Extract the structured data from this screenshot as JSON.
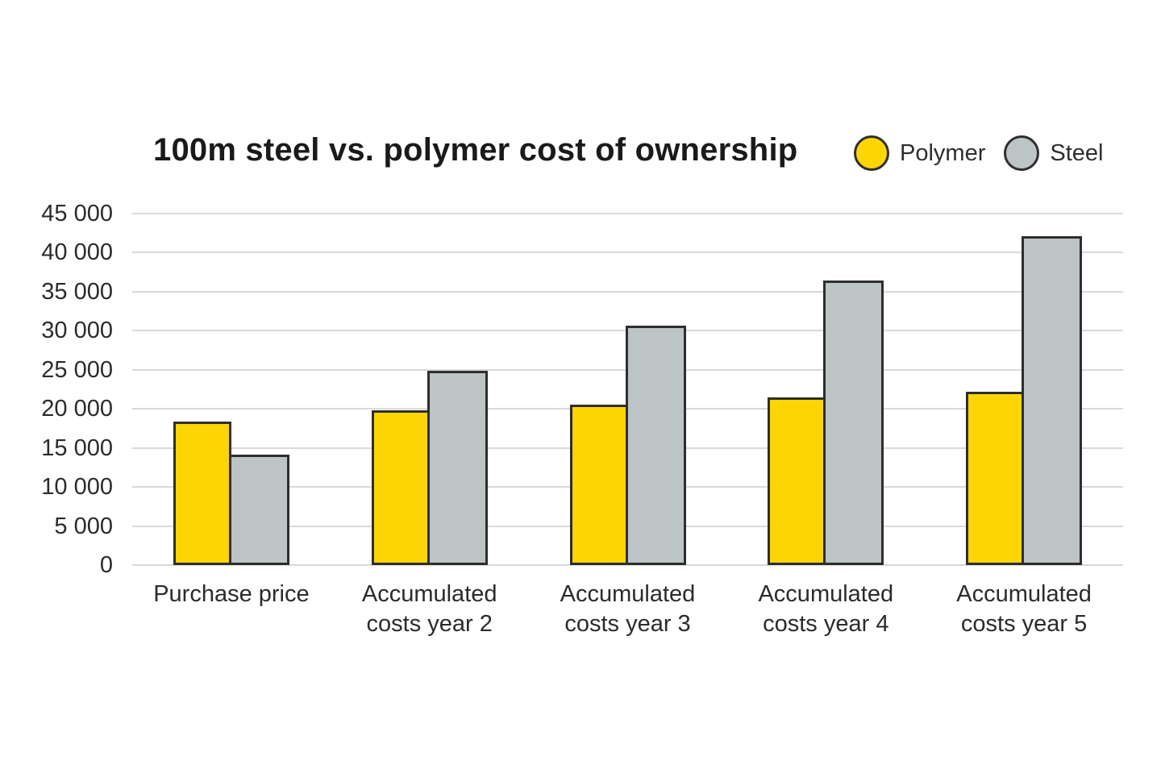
{
  "page": {
    "background": "#ffffff"
  },
  "chart_data": {
    "type": "bar",
    "title": "100m steel vs. polymer cost of ownership",
    "categories": [
      "Purchase price",
      "Accumulated costs year 2",
      "Accumulated costs year 3",
      "Accumulated costs year 4",
      "Accumulated costs year 5"
    ],
    "category_lines": [
      [
        "Purchase price"
      ],
      [
        "Accumulated",
        "costs year 2"
      ],
      [
        "Accumulated",
        "costs year 3"
      ],
      [
        "Accumulated",
        "costs year 4"
      ],
      [
        "Accumulated",
        "costs year 5"
      ]
    ],
    "series": [
      {
        "name": "Polymer",
        "color": "#fcd505",
        "values": [
          18400,
          19800,
          20500,
          21500,
          22200
        ]
      },
      {
        "name": "Steel",
        "color": "#bdc4c6",
        "values": [
          14100,
          24900,
          30700,
          36400,
          42100
        ]
      }
    ],
    "xlabel": "",
    "ylabel": "",
    "ylim": [
      0,
      45000
    ],
    "ytick_step": 5000,
    "yticks": [
      {
        "value": 45000,
        "label": "45 000"
      },
      {
        "value": 40000,
        "label": "40 000"
      },
      {
        "value": 35000,
        "label": "35 000"
      },
      {
        "value": 30000,
        "label": "30 000"
      },
      {
        "value": 25000,
        "label": "25 000"
      },
      {
        "value": 20000,
        "label": "20 000"
      },
      {
        "value": 15000,
        "label": "15 000"
      },
      {
        "value": 10000,
        "label": "10 000"
      },
      {
        "value": 5000,
        "label": "5 000"
      },
      {
        "value": 0,
        "label": "0"
      }
    ],
    "grid": true,
    "legend_position": "top-right",
    "bar_border_color": "#2e2e2e",
    "gridline_color": "#d9d9d9"
  }
}
